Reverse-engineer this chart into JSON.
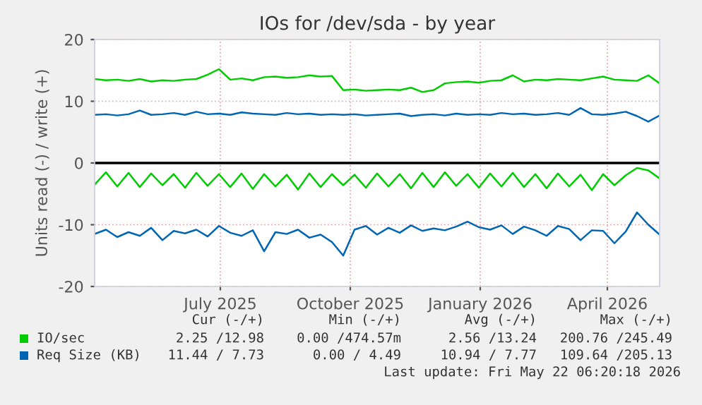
{
  "chart_data": {
    "type": "line",
    "title": "IOs for /dev/sda - by year",
    "ylabel": "Units read (-) / write (+)",
    "x": [
      "2025-04-03",
      "2025-04-11",
      "2025-04-19",
      "2025-04-27",
      "2025-05-05",
      "2025-05-13",
      "2025-05-21",
      "2025-05-29",
      "2025-06-06",
      "2025-06-14",
      "2025-06-22",
      "2025-06-30",
      "2025-07-08",
      "2025-07-16",
      "2025-07-24",
      "2025-08-01",
      "2025-08-09",
      "2025-08-17",
      "2025-08-25",
      "2025-09-02",
      "2025-09-10",
      "2025-09-18",
      "2025-09-26",
      "2025-10-04",
      "2025-10-12",
      "2025-10-20",
      "2025-10-28",
      "2025-11-05",
      "2025-11-13",
      "2025-11-21",
      "2025-11-29",
      "2025-12-07",
      "2025-12-15",
      "2025-12-23",
      "2025-12-31",
      "2026-01-08",
      "2026-01-16",
      "2026-01-24",
      "2026-02-01",
      "2026-02-09",
      "2026-02-17",
      "2026-02-25",
      "2026-03-05",
      "2026-03-13",
      "2026-03-21",
      "2026-03-29",
      "2026-04-06",
      "2026-04-14",
      "2026-04-22",
      "2026-04-30",
      "2026-05-08"
    ],
    "series": [
      {
        "name": "IO/sec",
        "color": "#00cc00",
        "values": [
          13.6,
          13.4,
          13.5,
          13.3,
          13.6,
          13.2,
          13.4,
          13.3,
          13.5,
          13.6,
          14.3,
          15.2,
          13.5,
          13.7,
          13.4,
          13.9,
          14.0,
          13.8,
          13.9,
          14.2,
          14.0,
          14.1,
          11.8,
          11.9,
          11.7,
          11.8,
          11.9,
          11.8,
          12.2,
          11.5,
          11.8,
          12.9,
          13.1,
          13.2,
          13.0,
          13.3,
          13.4,
          14.2,
          13.2,
          13.5,
          13.4,
          13.6,
          13.5,
          13.4,
          13.7,
          14.0,
          13.5,
          13.4,
          13.3,
          14.2,
          12.9
        ]
      },
      {
        "color": "#00cc00",
        "values": [
          -3.5,
          -1.5,
          -3.8,
          -1.6,
          -3.9,
          -1.7,
          -3.6,
          -1.8,
          -4.0,
          -1.6,
          -3.7,
          -1.8,
          -3.9,
          -1.7,
          -4.2,
          -1.8,
          -3.8,
          -1.9,
          -4.3,
          -1.7,
          -3.9,
          -1.8,
          -3.6,
          -1.9,
          -4.0,
          -1.7,
          -3.8,
          -1.8,
          -4.1,
          -1.6,
          -3.9,
          -1.5,
          -3.7,
          -1.8,
          -4.0,
          -1.7,
          -3.8,
          -1.6,
          -3.9,
          -1.8,
          -4.1,
          -1.7,
          -3.8,
          -1.9,
          -4.4,
          -1.8,
          -3.6,
          -2.0,
          -0.8,
          -1.2,
          -2.5
        ]
      },
      {
        "name": "Req Size (KB)",
        "color": "#0066b3",
        "values": [
          7.8,
          7.9,
          7.7,
          7.9,
          8.5,
          7.8,
          7.9,
          8.1,
          7.8,
          8.3,
          7.9,
          8.0,
          7.8,
          8.2,
          8.0,
          7.9,
          7.8,
          8.1,
          7.9,
          8.0,
          7.8,
          7.9,
          7.8,
          7.9,
          7.7,
          7.8,
          7.9,
          8.0,
          7.6,
          7.8,
          7.9,
          7.7,
          8.0,
          7.8,
          7.9,
          7.8,
          8.1,
          7.9,
          8.0,
          7.8,
          7.9,
          8.1,
          7.8,
          8.9,
          7.9,
          7.8,
          8.0,
          8.3,
          7.6,
          6.7,
          7.7
        ]
      },
      {
        "color": "#0066b3",
        "values": [
          -11.5,
          -10.8,
          -12.0,
          -11.2,
          -11.8,
          -10.5,
          -12.5,
          -11.0,
          -11.4,
          -10.8,
          -11.9,
          -10.2,
          -11.3,
          -11.8,
          -10.9,
          -14.3,
          -11.2,
          -11.5,
          -10.8,
          -12.1,
          -11.6,
          -12.8,
          -15.0,
          -10.8,
          -10.2,
          -11.6,
          -10.5,
          -11.3,
          -10.1,
          -11.0,
          -10.6,
          -10.9,
          -10.3,
          -9.5,
          -10.4,
          -10.8,
          -10.1,
          -11.5,
          -10.3,
          -10.9,
          -11.8,
          -10.2,
          -10.7,
          -12.5,
          -10.9,
          -11.0,
          -13.0,
          -11.1,
          -8.0,
          -10.0,
          -11.6
        ]
      }
    ],
    "ylim": [
      -20,
      20
    ],
    "yticks": [
      -20,
      -10,
      0,
      10,
      20
    ],
    "xlim": [
      "2025-04-03",
      "2026-05-08"
    ],
    "xticks": [
      {
        "value": "2025-07-01",
        "label": "July 2025"
      },
      {
        "value": "2025-10-01",
        "label": "October 2025"
      },
      {
        "value": "2026-01-01",
        "label": "January 2026"
      },
      {
        "value": "2026-04-01",
        "label": "April 2026"
      }
    ],
    "ref_lines": [
      {
        "axis": "y",
        "value": 0,
        "color": "#000000"
      }
    ],
    "grid": true,
    "legend": "bottom",
    "annotations": [
      "Cur (-/+)",
      "Min (-/+)",
      "Avg (-/+)",
      "Max (-/+)",
      "2.25 /12.98",
      "0.00 /474.57m",
      "2.56 /13.24",
      "200.76 /245.49",
      "11.44 / 7.73",
      "0.00 / 4.49",
      "10.94 / 7.77",
      "109.64 /205.13",
      "Last update: Fri May 22 06:20:18 2026"
    ]
  }
}
